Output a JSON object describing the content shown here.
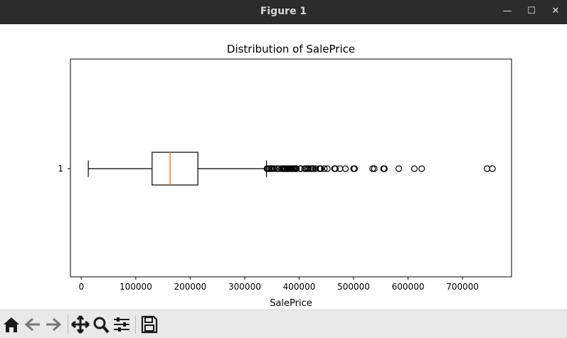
{
  "window": {
    "title": "Figure 1",
    "minimize_glyph": "—",
    "maximize_glyph": "☐",
    "close_glyph": "✕"
  },
  "toolbar": {
    "items": [
      {
        "name": "home-icon"
      },
      {
        "name": "back-arrow-icon"
      },
      {
        "name": "forward-arrow-icon"
      },
      {
        "name": "pan-icon"
      },
      {
        "name": "zoom-icon"
      },
      {
        "name": "configure-subplots-icon"
      },
      {
        "name": "save-icon"
      }
    ]
  },
  "colors": {
    "box": "#000000",
    "median": "#ff7f0e",
    "titlebar": "#2c2c2c",
    "toolbar": "#e9e9e9"
  },
  "chart_data": {
    "type": "boxplot",
    "orientation": "horizontal",
    "title": "Distribution of SalePrice",
    "xlabel": "SalePrice",
    "ylabel": "",
    "xlim": [
      -20000,
      790000
    ],
    "xticks": [
      0,
      100000,
      200000,
      300000,
      400000,
      500000,
      600000,
      700000
    ],
    "xtick_labels": [
      "0",
      "100000",
      "200000",
      "300000",
      "400000",
      "500000",
      "600000",
      "700000"
    ],
    "category_labels": [
      "1"
    ],
    "boxes": [
      {
        "label": "1",
        "whisker_low": 12789,
        "q1": 129975,
        "median": 163000,
        "q3": 214000,
        "whisker_high": 340000,
        "outliers": [
          341000,
          342643,
          345000,
          345474,
          348000,
          350000,
          354000,
          355000,
          359100,
          360000,
          361919,
          367294,
          369900,
          370878,
          372402,
          372500,
          374000,
          375000,
          377426,
          377500,
          378500,
          380000,
          381000,
          382500,
          383970,
          385000,
          386250,
          387000,
          389000,
          390000,
          392000,
          392500,
          394432,
          394617,
          395000,
          402000,
          402861,
          403000,
          410000,
          412500,
          415298,
          417500,
          421250,
          423000,
          424870,
          426000,
          430000,
          437154,
          438780,
          440000,
          446261,
          451950,
          465000,
          466500,
          475000,
          485000,
          500000,
          501837,
          535000,
          538000,
          555000,
          556581,
          582933,
          611657,
          625000,
          745000,
          755000
        ]
      }
    ],
    "grid": false
  }
}
